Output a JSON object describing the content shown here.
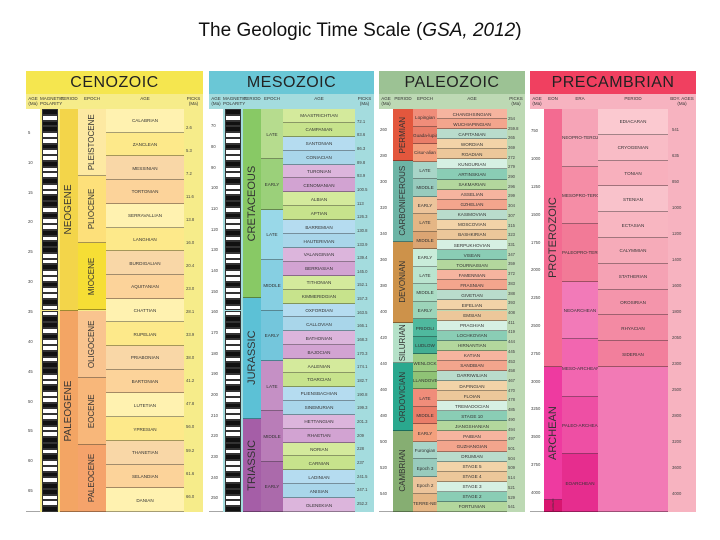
{
  "title": {
    "main": "The Geologic Time Scale (",
    "cite": "GSA, 2012",
    "close": ")"
  },
  "eras": [
    {
      "key": "cenozoic",
      "label": "CENOZOIC",
      "color": "#f5e64f"
    },
    {
      "key": "mesozoic",
      "label": "MESOZOIC",
      "color": "#6ac7d6"
    },
    {
      "key": "paleozoic",
      "label": "PALEOZOIC",
      "color": "#9cc294"
    },
    {
      "key": "precambrian",
      "label": "PRECAMBRIAN",
      "color": "#f04060"
    }
  ],
  "colheads": {
    "age_ma": "AGE (Ma)",
    "magnetic": "MAGNETIC POLARITY",
    "period": "PERIOD",
    "epoch": "EPOCH",
    "age": "AGE",
    "picks": "PICKS (Ma)",
    "eon": "EON",
    "era": "ERA",
    "bdy": "BDY. AGES (Ma)"
  },
  "cenozoic": {
    "periods": [
      {
        "label": "NEOGENE"
      },
      {
        "label": "PALEOGENE"
      }
    ],
    "epochs": [
      {
        "label": "PLEISTOCENE"
      },
      {
        "label": "PLIOCENE"
      },
      {
        "label": "MIOCENE"
      },
      {
        "label": "OLIGOCENE"
      },
      {
        "label": "EOCENE"
      },
      {
        "label": "PALEOCENE"
      }
    ],
    "ages": [
      "CALABRIAN",
      "ZANCLEAN",
      "MESSINIAN",
      "TORTONIAN",
      "SERRAVALLIAN",
      "LANGHIAN",
      "BURDIGALIAN",
      "AQUITANIAN",
      "CHATTIAN",
      "RUPELIAN",
      "PRIABONIAN",
      "BARTONIAN",
      "LUTETIAN",
      "YPRESIAN",
      "THANETIAN",
      "SELANDIAN",
      "DANIAN"
    ],
    "age_ticks": [
      "5",
      "10",
      "15",
      "20",
      "25",
      "30",
      "35",
      "40",
      "45",
      "50",
      "55",
      "60",
      "65"
    ],
    "picks": [
      "2.6",
      "5.3",
      "7.2",
      "11.6",
      "13.8",
      "16.0",
      "20.4",
      "23.0",
      "28.1",
      "33.9",
      "38.0",
      "41.2",
      "47.8",
      "56.0",
      "59.2",
      "61.6",
      "66.0"
    ]
  },
  "mesozoic": {
    "periods": [
      {
        "label": "CRETACEOUS"
      },
      {
        "label": "JURASSIC"
      },
      {
        "label": "TRIASSIC"
      }
    ],
    "epochs": [
      "LATE",
      "EARLY",
      "LATE",
      "MIDDLE",
      "EARLY",
      "LATE",
      "MIDDLE",
      "EARLY"
    ],
    "ages": [
      "MAASTRICHTIAN",
      "CAMPANIAN",
      "SANTONIAN",
      "CONIACIAN",
      "TURONIAN",
      "CENOMANIAN",
      "ALBIAN",
      "APTIAN",
      "BARREMIAN",
      "HAUTERIVIAN",
      "VALANGINIAN",
      "BERRIASIAN",
      "TITHONIAN",
      "KIMMERIDGIAN",
      "OXFORDIAN",
      "CALLOVIAN",
      "BATHONIAN",
      "BAJOCIAN",
      "AALENIAN",
      "TOARCIAN",
      "PLIENSBACHIAN",
      "SINEMURIAN",
      "HETTANGIAN",
      "RHAETIAN",
      "NORIAN",
      "CARNIAN",
      "LADINIAN",
      "ANISIAN",
      "OLENEKIAN"
    ],
    "age_ticks": [
      "70",
      "80",
      "90",
      "100",
      "110",
      "120",
      "130",
      "140",
      "150",
      "160",
      "170",
      "180",
      "190",
      "200",
      "210",
      "220",
      "230",
      "240",
      "250"
    ],
    "picks": [
      "72.1",
      "83.6",
      "86.3",
      "89.8",
      "93.9",
      "100.5",
      "113",
      "126.3",
      "130.8",
      "133.9",
      "139.4",
      "145.0",
      "152.1",
      "157.3",
      "163.5",
      "166.1",
      "168.3",
      "170.3",
      "174.1",
      "182.7",
      "190.8",
      "199.3",
      "201.3",
      "209",
      "228",
      "237",
      "241.5",
      "247.1",
      "252.2"
    ]
  },
  "paleozoic": {
    "periods": [
      {
        "label": "PERMIAN"
      },
      {
        "label": "CARBONIFEROUS"
      },
      {
        "label": "DEVONIAN"
      },
      {
        "label": "SILURIAN"
      },
      {
        "label": "ORDOVICIAN"
      },
      {
        "label": "CAMBRIAN"
      }
    ],
    "subperiods": [
      "PENNSYL-VANIAN",
      "MISSIS-SIPPIAN"
    ],
    "epochs": [
      "Lopingian",
      "Guada-lupian",
      "Cisur-alian",
      "LATE",
      "MIDDLE",
      "EARLY",
      "LATE",
      "MIDDLE",
      "EARLY",
      "LATE",
      "MIDDLE",
      "EARLY",
      "PRIDOLI",
      "LUDLOW",
      "WENLOCK",
      "LLANDOVERY",
      "LATE",
      "MIDDLE",
      "EARLY",
      "Furongian",
      "Epoch 3",
      "Epoch 2",
      "TERRE-NEUVIAN"
    ],
    "ages": [
      "CHANGHSINGIAN",
      "WUCHIAPINGIAN",
      "CAPITANIAN",
      "WORDIAN",
      "ROADIAN",
      "KUNGURIAN",
      "ARTINSKIAN",
      "SAKMARIAN",
      "ASSELIAN",
      "GZHELIAN",
      "KASIMOVIAN",
      "MOSCOVIAN",
      "BASHKIRIAN",
      "SERPUKHOVIAN",
      "VISEAN",
      "TOURNAISIAN",
      "FAMENNIAN",
      "FRASNIAN",
      "GIVETIAN",
      "EIFELIAN",
      "EMSIAN",
      "PRAGHIAN",
      "LOCHKOVIAN",
      "HIRNANTIAN",
      "KATIAN",
      "SANDBIAN",
      "DARRIWILIAN",
      "DAPINGIAN",
      "FLOIAN",
      "TREMADOCIAN",
      "STAGE 10",
      "JIANGSHANIAN",
      "PAIBIAN",
      "GUZHANGIAN",
      "DRUMIAN",
      "STAGE 5",
      "STAGE 4",
      "STAGE 3",
      "STAGE 2",
      "FORTUNIAN"
    ],
    "age_ticks": [
      "260",
      "280",
      "300",
      "320",
      "340",
      "360",
      "380",
      "400",
      "420",
      "440",
      "460",
      "480",
      "500",
      "520",
      "540"
    ],
    "picks": [
      "254",
      "259.8",
      "265",
      "269",
      "272",
      "279",
      "290",
      "296",
      "299",
      "304",
      "307",
      "315",
      "323",
      "331",
      "347",
      "359",
      "372",
      "383",
      "388",
      "393",
      "408",
      "411",
      "419",
      "444",
      "445",
      "453",
      "458",
      "467",
      "470",
      "478",
      "485",
      "490",
      "494",
      "497",
      "501",
      "504",
      "509",
      "514",
      "521",
      "529",
      "541"
    ]
  },
  "precambrian": {
    "eons": [
      {
        "label": "PROTEROZOIC"
      },
      {
        "label": "ARCHEAN"
      },
      {
        "label": "HADEAN"
      }
    ],
    "eras": [
      "NEOPRO-TEROZOIC",
      "MESOPRO-TEROZOIC",
      "PALEOPRO-TEROZOIC",
      "NEOARCHEAN",
      "MESO-ARCHEAN",
      "PALEO-ARCHEAN",
      "EOARCHEAN"
    ],
    "periods": [
      "EDIACARAN",
      "CRYOGENIAN",
      "TONIAN",
      "STENIAN",
      "ECTASIAN",
      "CALYMMIAN",
      "STATHERIAN",
      "OROSIRIAN",
      "RHYACIAN",
      "SIDERIAN"
    ],
    "age_ticks": [
      "750",
      "1000",
      "1250",
      "1500",
      "1750",
      "2000",
      "2250",
      "2500",
      "2750",
      "3000",
      "3250",
      "3500",
      "3750",
      "4000"
    ],
    "bdy": [
      "541",
      "635",
      "850",
      "1000",
      "1200",
      "1400",
      "1600",
      "1800",
      "2050",
      "2300",
      "2500",
      "2800",
      "3200",
      "3600",
      "4000"
    ]
  }
}
